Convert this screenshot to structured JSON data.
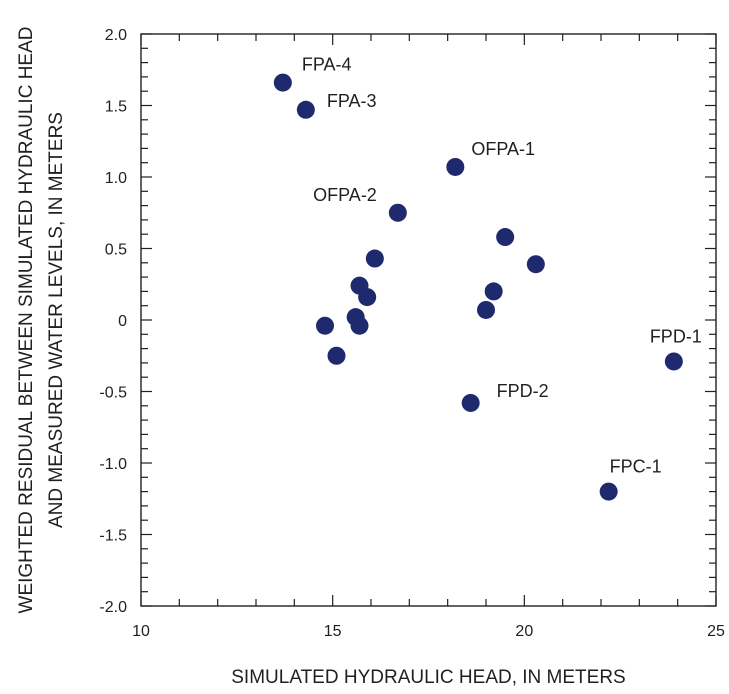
{
  "chart_data": {
    "type": "scatter",
    "xlabel": "SIMULATED HYDRAULIC HEAD, IN METERS",
    "ylabel_lines": [
      "WEIGHTED RESIDUAL BETWEEN SIMULATED HYDRAULIC HEAD",
      "AND MEASURED WATER LEVELS, IN METERS"
    ],
    "xlim": [
      10,
      25
    ],
    "ylim": [
      -2.0,
      2.0
    ],
    "x_ticks": [
      10,
      15,
      20,
      25
    ],
    "x_tick_labels": [
      "10",
      "15",
      "20",
      "25"
    ],
    "x_minor_step": 1,
    "y_ticks": [
      2.0,
      1.5,
      1.0,
      0.5,
      0,
      -0.5,
      -1.0,
      -1.5,
      -2.0
    ],
    "y_tick_labels": [
      "2.0",
      "1.5",
      "1.0",
      "0.5",
      "0",
      "-0.5",
      "-1.0",
      "-1.5",
      "-2.0"
    ],
    "y_minor_step": 0.1,
    "grid": false,
    "marker_color": "#1f2a6e",
    "points": [
      {
        "x": 13.7,
        "y": 1.66,
        "label": "FPA-4"
      },
      {
        "x": 14.3,
        "y": 1.47,
        "label": "FPA-3"
      },
      {
        "x": 18.2,
        "y": 1.07,
        "label": "OFPA-1"
      },
      {
        "x": 16.7,
        "y": 0.75,
        "label": "OFPA-2"
      },
      {
        "x": 19.5,
        "y": 0.58,
        "label": ""
      },
      {
        "x": 20.3,
        "y": 0.39,
        "label": ""
      },
      {
        "x": 16.1,
        "y": 0.43,
        "label": ""
      },
      {
        "x": 15.7,
        "y": 0.24,
        "label": ""
      },
      {
        "x": 15.9,
        "y": 0.16,
        "label": ""
      },
      {
        "x": 19.2,
        "y": 0.2,
        "label": ""
      },
      {
        "x": 19.0,
        "y": 0.07,
        "label": ""
      },
      {
        "x": 15.6,
        "y": 0.02,
        "label": ""
      },
      {
        "x": 15.7,
        "y": -0.04,
        "label": ""
      },
      {
        "x": 14.8,
        "y": -0.04,
        "label": ""
      },
      {
        "x": 15.1,
        "y": -0.25,
        "label": ""
      },
      {
        "x": 23.9,
        "y": -0.29,
        "label": "FPD-1"
      },
      {
        "x": 18.6,
        "y": -0.58,
        "label": "FPD-2"
      },
      {
        "x": 22.2,
        "y": -1.2,
        "label": "FPC-1"
      }
    ]
  }
}
